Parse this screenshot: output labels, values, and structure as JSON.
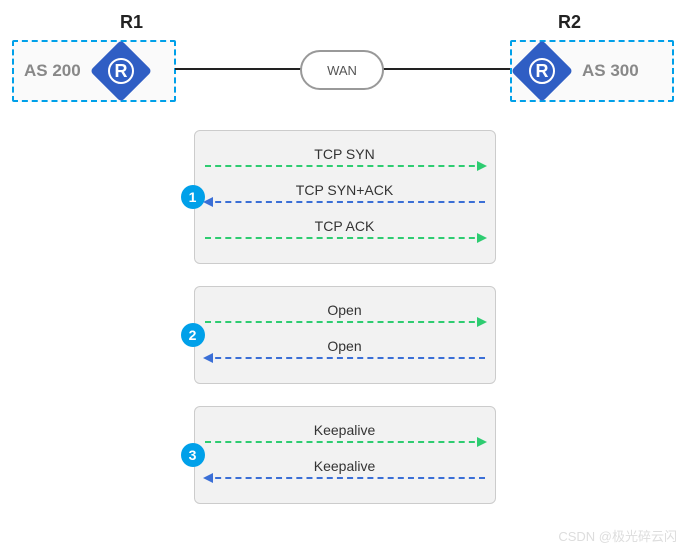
{
  "topology": {
    "r1": {
      "label": "R1",
      "as": "AS 200"
    },
    "r2": {
      "label": "R2",
      "as": "AS 300"
    },
    "wan": "WAN",
    "router_glyph": "R",
    "colors": {
      "as_border": "#00a0e9",
      "router_fill": "#2f5ec4",
      "as_text": "#888888",
      "line": "#222222"
    }
  },
  "arrow_colors": {
    "forward": "#2ecc71",
    "reverse": "#3b6fd6"
  },
  "steps": [
    {
      "num": "1",
      "messages": [
        {
          "label": "TCP SYN",
          "dir": "right",
          "color": "green"
        },
        {
          "label": "TCP SYN+ACK",
          "dir": "left",
          "color": "blue"
        },
        {
          "label": "TCP ACK",
          "dir": "right",
          "color": "green"
        }
      ]
    },
    {
      "num": "2",
      "messages": [
        {
          "label": "Open",
          "dir": "right",
          "color": "green"
        },
        {
          "label": "Open",
          "dir": "left",
          "color": "blue"
        }
      ]
    },
    {
      "num": "3",
      "messages": [
        {
          "label": "Keepalive",
          "dir": "right",
          "color": "green"
        },
        {
          "label": "Keepalive",
          "dir": "left",
          "color": "blue"
        }
      ]
    }
  ],
  "badge_color": "#00a0e9",
  "box_bg": "#f2f2f2",
  "watermark": "CSDN @极光碎云闪"
}
